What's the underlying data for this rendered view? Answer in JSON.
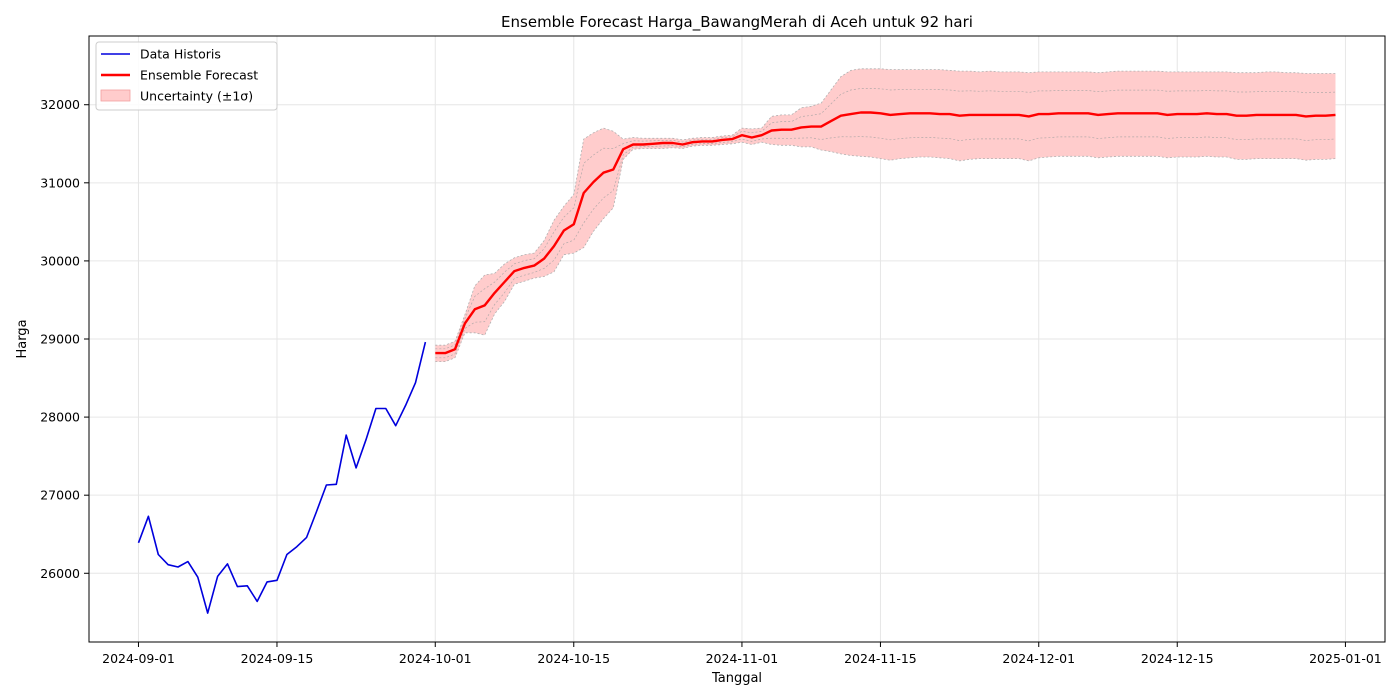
{
  "chart_data": {
    "type": "line",
    "title": "Ensemble Forecast Harga_BawangMerah di Aceh untuk 92 hari",
    "xlabel": "Tanggal",
    "ylabel": "Harga",
    "xlim": [
      "2024-08-27",
      "2025-01-05"
    ],
    "ylim": [
      25120,
      32880
    ],
    "x_ticks": [
      "2024-09-01",
      "2024-09-15",
      "2024-10-01",
      "2024-10-15",
      "2024-11-01",
      "2024-11-15",
      "2024-12-01",
      "2024-12-15",
      "2025-01-01"
    ],
    "y_ticks": [
      26000,
      27000,
      28000,
      29000,
      30000,
      31000,
      32000
    ],
    "grid": true,
    "legend_position": "top-left",
    "colors": {
      "historical": "#0000dd",
      "forecast": "#ff0000",
      "band_fill": "#ffcccc",
      "band_edge": "#b0b0b0",
      "member": "#a0a0a0"
    },
    "legend": [
      {
        "key": "historical",
        "label": "Data Historis"
      },
      {
        "key": "forecast",
        "label": "Ensemble Forecast"
      },
      {
        "key": "band",
        "label": "Uncertainty (±1σ)"
      }
    ],
    "series": [
      {
        "key": "historical",
        "name": "Data Historis",
        "start_date": "2024-09-01",
        "values": [
          26390,
          26730,
          26240,
          26110,
          26080,
          26150,
          25950,
          25490,
          25960,
          26120,
          25830,
          25840,
          25640,
          25890,
          25910,
          26240,
          26340,
          26460,
          26790,
          27130,
          27140,
          27770,
          27350,
          27710,
          28110,
          28110,
          27890,
          28150,
          28440,
          28960
        ]
      },
      {
        "key": "forecast",
        "name": "Ensemble Forecast",
        "start_date": "2024-10-01",
        "values": [
          28820,
          28820,
          28870,
          29200,
          29380,
          29430,
          29590,
          29730,
          29870,
          29910,
          29940,
          30030,
          30190,
          30390,
          30470,
          30870,
          31010,
          31130,
          31170,
          31430,
          31490,
          31490,
          31500,
          31510,
          31510,
          31490,
          31520,
          31530,
          31530,
          31550,
          31560,
          31610,
          31580,
          31610,
          31670,
          31680,
          31680,
          31710,
          31720,
          31720,
          31790,
          31860,
          31880,
          31900,
          31900,
          31890,
          31870,
          31880,
          31890,
          31890,
          31890,
          31880,
          31880,
          31860,
          31870,
          31870,
          31870,
          31870,
          31870,
          31870,
          31850,
          31880,
          31880,
          31890,
          31890,
          31890,
          31890,
          31870,
          31880,
          31890,
          31890,
          31890,
          31890,
          31890,
          31870,
          31880,
          31880,
          31880,
          31890,
          31880,
          31880,
          31860,
          31860,
          31870,
          31870,
          31870,
          31870,
          31870,
          31850,
          31860,
          31860,
          31870
        ]
      }
    ],
    "uncertainty_band": {
      "name": "Uncertainty (±1σ)",
      "start_date": "2024-10-01",
      "upper": [
        28920,
        28920,
        28970,
        29310,
        29680,
        29820,
        29840,
        29960,
        30040,
        30080,
        30100,
        30260,
        30520,
        30700,
        30850,
        31560,
        31640,
        31700,
        31660,
        31560,
        31580,
        31570,
        31570,
        31570,
        31570,
        31550,
        31570,
        31580,
        31580,
        31600,
        31610,
        31700,
        31690,
        31700,
        31850,
        31870,
        31870,
        31960,
        31980,
        32020,
        32190,
        32360,
        32440,
        32460,
        32460,
        32460,
        32450,
        32450,
        32450,
        32450,
        32450,
        32450,
        32440,
        32430,
        32430,
        32420,
        32430,
        32420,
        32420,
        32420,
        32410,
        32420,
        32420,
        32420,
        32420,
        32420,
        32420,
        32410,
        32420,
        32430,
        32430,
        32430,
        32430,
        32430,
        32420,
        32420,
        32420,
        32420,
        32420,
        32420,
        32420,
        32410,
        32410,
        32410,
        32420,
        32420,
        32410,
        32410,
        32400,
        32400,
        32400,
        32400
      ],
      "lower": [
        28710,
        28710,
        28760,
        29080,
        29080,
        29050,
        29320,
        29480,
        29700,
        29740,
        29780,
        29800,
        29860,
        30080,
        30100,
        30170,
        30380,
        30540,
        30680,
        31300,
        31430,
        31440,
        31440,
        31440,
        31450,
        31440,
        31470,
        31480,
        31480,
        31490,
        31500,
        31520,
        31490,
        31520,
        31490,
        31480,
        31480,
        31460,
        31460,
        31420,
        31400,
        31370,
        31350,
        31340,
        31330,
        31310,
        31290,
        31310,
        31320,
        31330,
        31330,
        31320,
        31310,
        31280,
        31300,
        31310,
        31310,
        31310,
        31310,
        31310,
        31280,
        31320,
        31330,
        31340,
        31340,
        31340,
        31340,
        31320,
        31330,
        31340,
        31340,
        31340,
        31340,
        31340,
        31320,
        31330,
        31330,
        31330,
        31340,
        31330,
        31330,
        31300,
        31300,
        31310,
        31310,
        31310,
        31310,
        31310,
        31290,
        31300,
        31300,
        31310
      ]
    }
  }
}
